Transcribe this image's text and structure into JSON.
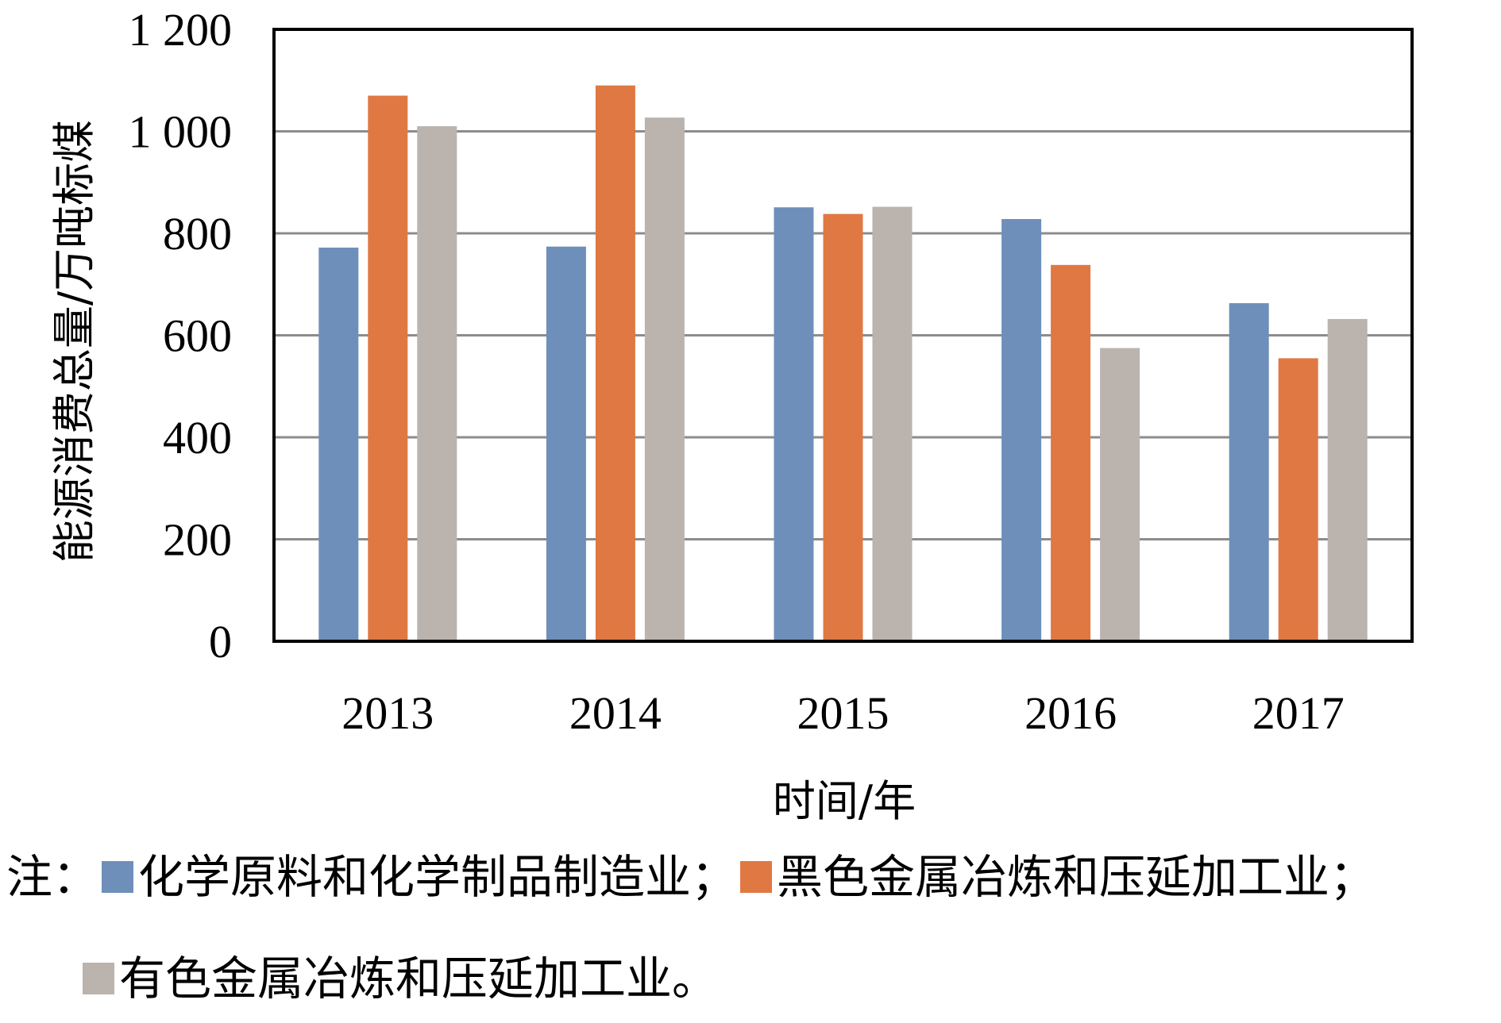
{
  "chart_data": {
    "type": "bar",
    "title": "",
    "xlabel": "时间/年",
    "ylabel": "能源消费总量/万吨标煤",
    "categories": [
      "2013",
      "2014",
      "2015",
      "2016",
      "2017"
    ],
    "ylim": [
      0,
      1200
    ],
    "yticks": [
      0,
      200,
      400,
      600,
      800,
      1000,
      1200
    ],
    "ytick_labels": [
      "0",
      "200",
      "400",
      "600",
      "800",
      "1 000",
      "1 200"
    ],
    "grid": true,
    "series": [
      {
        "name": "化学原料和化学制品制造业",
        "color": "#6e8fba",
        "values": [
          772,
          774,
          851,
          828,
          663
        ]
      },
      {
        "name": "黑色金属冶炼和压延加工业",
        "color": "#e07843",
        "values": [
          1070,
          1090,
          838,
          738,
          555
        ]
      },
      {
        "name": "有色金属冶炼和压延加工业",
        "color": "#bab3ae",
        "values": [
          1010,
          1027,
          852,
          575,
          632
        ]
      }
    ]
  },
  "note": {
    "prefix": "注：",
    "sep1": "；",
    "sep2": "；",
    "end": "。"
  }
}
